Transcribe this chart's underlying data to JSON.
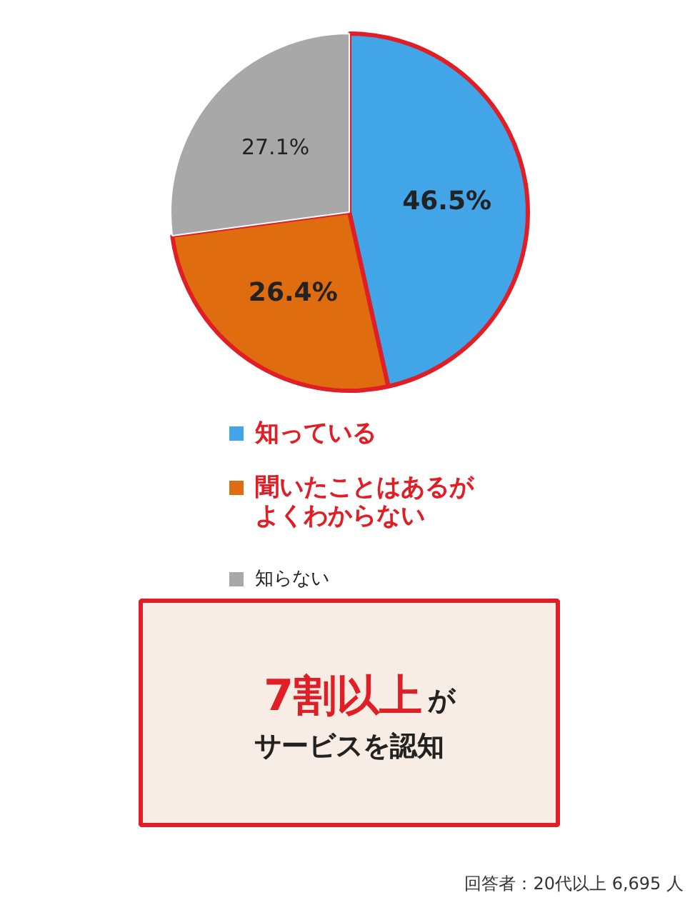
{
  "chart_data": {
    "type": "pie",
    "categories": [
      "知っている",
      "聞いたことはあるがよくわからない",
      "知らない"
    ],
    "values": [
      46.5,
      26.4,
      27.1
    ],
    "colors": [
      "#42a5e8",
      "#e06c10",
      "#a8a8a8"
    ],
    "value_labels": [
      "46.5%",
      "26.4%",
      "27.1%"
    ],
    "legend": "bottom",
    "annotations": [
      "7割以上",
      "が",
      "サービスを認知",
      "回答者：20代以上 6,695 人"
    ]
  }
}
